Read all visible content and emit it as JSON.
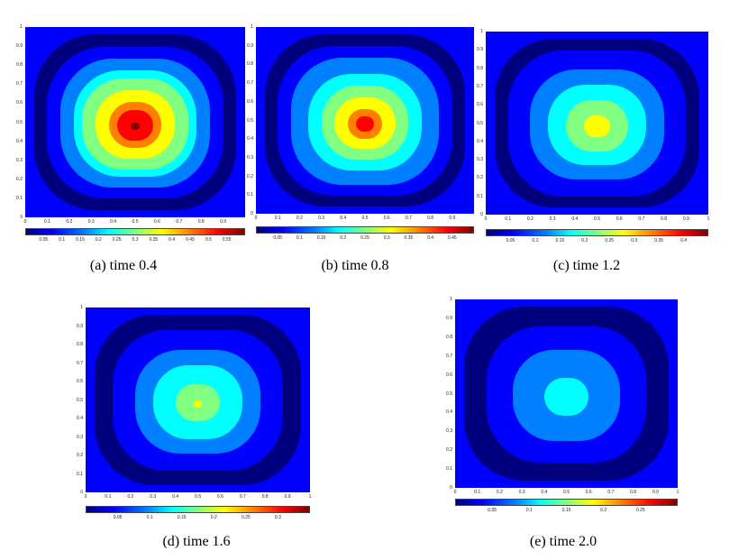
{
  "colormap": [
    "#00007f",
    "#0000ff",
    "#0080ff",
    "#00ffff",
    "#80ff80",
    "#ffff00",
    "#ff8000",
    "#ff0000",
    "#7f0000"
  ],
  "panels": [
    {
      "id": "a",
      "caption": "(a) time 0.4",
      "peak_level": 0.98,
      "peak_focus": 0.1,
      "y_ticks": [
        "1",
        "0.9",
        "0.8",
        "0.7",
        "0.6",
        "0.5",
        "0.4",
        "0.3",
        "0.2",
        "0.1",
        "0"
      ],
      "x_ticks": [
        "0",
        "0.1",
        "0.2",
        "0.3",
        "0.4",
        "0.5",
        "0.6",
        "0.7",
        "0.8",
        "0.9"
      ],
      "cb_ticks": [
        "0.05",
        "0.1",
        "0.15",
        "0.2",
        "0.25",
        "0.3",
        "0.35",
        "0.4",
        "0.45",
        "0.5",
        "0.55"
      ]
    },
    {
      "id": "b",
      "caption": "(b) time 0.8",
      "peak_level": 0.86,
      "peak_focus": 0.02,
      "y_ticks": [
        "1",
        "0.9",
        "0.8",
        "0.7",
        "0.6",
        "0.5",
        "0.4",
        "0.3",
        "0.2",
        "0.1",
        "0"
      ],
      "x_ticks": [
        "0",
        "0.1",
        "0.2",
        "0.3",
        "0.4",
        "0.5",
        "0.6",
        "0.7",
        "0.8",
        "0.9"
      ],
      "cb_ticks": [
        "0.05",
        "0.1",
        "0.15",
        "0.2",
        "0.25",
        "0.3",
        "0.35",
        "0.4",
        "0.45"
      ]
    },
    {
      "id": "c",
      "caption": "(c) time 1.2",
      "peak_level": 0.66,
      "peak_focus": 0.0,
      "y_ticks": [
        "1",
        "0.9",
        "0.8",
        "0.7",
        "0.6",
        "0.5",
        "0.4",
        "0.3",
        "0.2",
        "0.1",
        "0"
      ],
      "x_ticks": [
        "0",
        "0.1",
        "0.2",
        "0.3",
        "0.4",
        "0.5",
        "0.6",
        "0.7",
        "0.8",
        "0.9",
        "1"
      ],
      "cb_ticks": [
        "0.05",
        "0.1",
        "0.15",
        "0.2",
        "0.25",
        "0.3",
        "0.35",
        "0.4"
      ]
    },
    {
      "id": "d",
      "caption": "(d) time 1.6",
      "peak_level": 0.58,
      "peak_focus": 0.0,
      "y_ticks": [
        "1",
        "0.9",
        "0.8",
        "0.7",
        "0.6",
        "0.5",
        "0.4",
        "0.3",
        "0.2",
        "0.1",
        "0"
      ],
      "x_ticks": [
        "0",
        "0.1",
        "0.2",
        "0.3",
        "0.4",
        "0.5",
        "0.6",
        "0.7",
        "0.8",
        "0.9",
        "1"
      ],
      "cb_ticks": [
        "0.05",
        "0.1",
        "0.15",
        "0.2",
        "0.25",
        "0.3"
      ]
    },
    {
      "id": "e",
      "caption": "(e) time 2.0",
      "peak_level": 0.42,
      "peak_focus": 0.0,
      "y_ticks": [
        "1",
        "0.9",
        "0.8",
        "0.7",
        "0.6",
        "0.5",
        "0.4",
        "0.3",
        "0.2",
        "0.1",
        "0"
      ],
      "x_ticks": [
        "0",
        "0.1",
        "0.2",
        "0.3",
        "0.4",
        "0.5",
        "0.6",
        "0.7",
        "0.8",
        "0.9",
        "1"
      ],
      "cb_ticks": [
        "0.05",
        "0.1",
        "0.15",
        "0.2",
        "0.25"
      ]
    }
  ]
}
